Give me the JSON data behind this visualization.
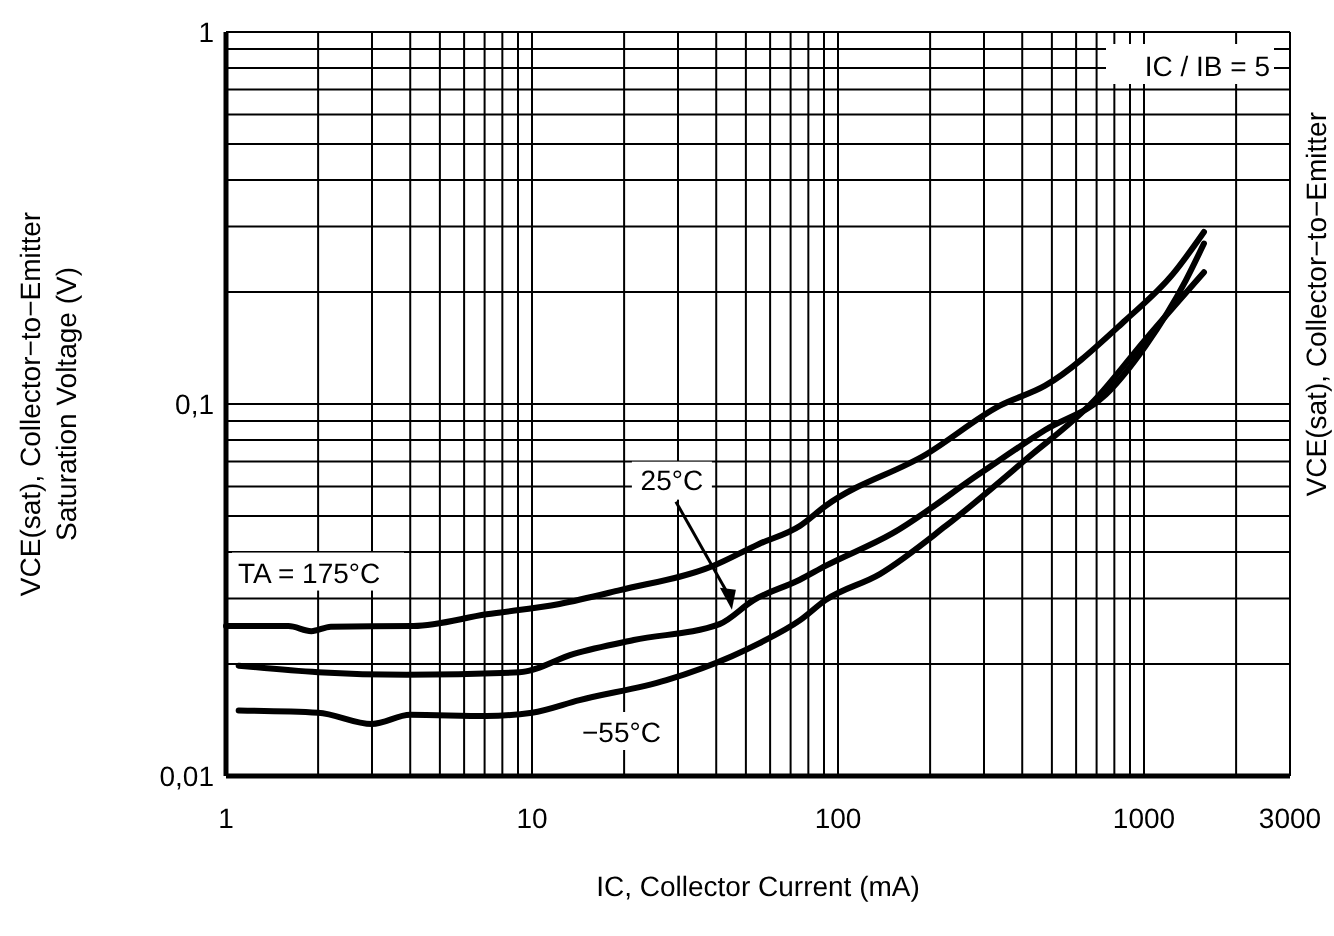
{
  "chart_data": {
    "type": "line",
    "xlabel": "IC, Collector Current (mA)",
    "ylabel": "VCE(sat), Collector−to−Emitter\nSaturation Voltage (V)",
    "log": "xy",
    "grid": true,
    "marker": "none",
    "line_style": "solid",
    "xlim": [
      1,
      3000
    ],
    "ylim": [
      0.01,
      1
    ],
    "xticks": [
      1,
      {
        "value": 2,
        "label": null
      },
      {
        "value": 3,
        "label": null
      },
      {
        "value": 4,
        "label": null
      },
      {
        "value": 5,
        "label": null
      },
      {
        "value": 6,
        "label": null
      },
      {
        "value": 7,
        "label": null
      },
      {
        "value": 8,
        "label": null
      },
      {
        "value": 9,
        "label": null
      },
      10,
      {
        "value": 20,
        "label": null
      },
      {
        "value": 30,
        "label": null
      },
      {
        "value": 40,
        "label": null
      },
      {
        "value": 50,
        "label": null
      },
      {
        "value": 60,
        "label": null
      },
      {
        "value": 70,
        "label": null
      },
      {
        "value": 80,
        "label": null
      },
      {
        "value": 90,
        "label": null
      },
      100,
      {
        "value": 200,
        "label": null
      },
      {
        "value": 300,
        "label": null
      },
      {
        "value": 400,
        "label": null
      },
      {
        "value": 500,
        "label": null
      },
      {
        "value": 600,
        "label": null
      },
      {
        "value": 700,
        "label": null
      },
      {
        "value": 800,
        "label": null
      },
      {
        "value": 900,
        "label": null
      },
      1000,
      {
        "value": 2000,
        "label": null
      },
      3000
    ],
    "yticks": [
      {
        "value": 0.01,
        "label": "0,01"
      },
      {
        "value": 0.02,
        "label": null
      },
      {
        "value": 0.03,
        "label": null
      },
      {
        "value": 0.04,
        "label": null
      },
      {
        "value": 0.05,
        "label": null
      },
      {
        "value": 0.06,
        "label": null
      },
      {
        "value": 0.07,
        "label": null
      },
      {
        "value": 0.08,
        "label": null
      },
      {
        "value": 0.09,
        "label": null
      },
      {
        "value": 0.1,
        "label": "0,1"
      },
      {
        "value": 0.2,
        "label": null
      },
      {
        "value": 0.3,
        "label": null
      },
      {
        "value": 0.4,
        "label": null
      },
      {
        "value": 0.5,
        "label": null
      },
      {
        "value": 0.6,
        "label": null
      },
      {
        "value": 0.7,
        "label": null
      },
      {
        "value": 0.8,
        "label": null
      },
      {
        "value": 0.9,
        "label": null
      },
      1
    ],
    "series": [
      {
        "color": "#000000",
        "x": [
          1,
          1.6,
          1.9,
          2.2,
          4.1,
          7.1,
          12.3,
          19.4,
          39,
          55,
          75,
          91,
          195,
          338,
          475,
          870,
          1240,
          1570
        ],
        "values": [
          0.0253,
          0.0253,
          0.0245,
          0.0252,
          0.0253,
          0.0272,
          0.029,
          0.0316,
          0.0367,
          0.042,
          0.047,
          0.0532,
          0.0734,
          0.099,
          0.112,
          0.168,
          0.223,
          0.29
        ]
      },
      {
        "color": "#000000",
        "x": [
          1.1,
          2,
          3.9,
          9.1,
          13.7,
          21.5,
          41,
          53,
          75,
          91,
          150,
          290,
          475,
          750,
          1010,
          1370,
          1570
        ],
        "values": [
          0.0198,
          0.019,
          0.0187,
          0.019,
          0.0213,
          0.0232,
          0.0256,
          0.0297,
          0.0337,
          0.0367,
          0.0448,
          0.0649,
          0.0851,
          0.106,
          0.143,
          0.215,
          0.27
        ]
      },
      {
        "color": "#000000",
        "x": [
          1.1,
          2,
          3,
          4,
          7.1,
          10,
          14.3,
          27.5,
          45,
          55,
          75,
          91,
          137,
          225,
          410,
          690,
          1010,
          1570
        ],
        "values": [
          0.015,
          0.0148,
          0.0138,
          0.0146,
          0.0145,
          0.0148,
          0.016,
          0.0181,
          0.021,
          0.0227,
          0.0262,
          0.0297,
          0.0349,
          0.047,
          0.0708,
          0.1025,
          0.149,
          0.226
        ]
      }
    ],
    "annotations": [
      "TA = 175°C",
      {
        "text": "25°C",
        "x": 45,
        "y": 0.028
      },
      "−55°C",
      "IC / IB = 5",
      "VCE(sat), Collector−to−Emitter"
    ]
  }
}
